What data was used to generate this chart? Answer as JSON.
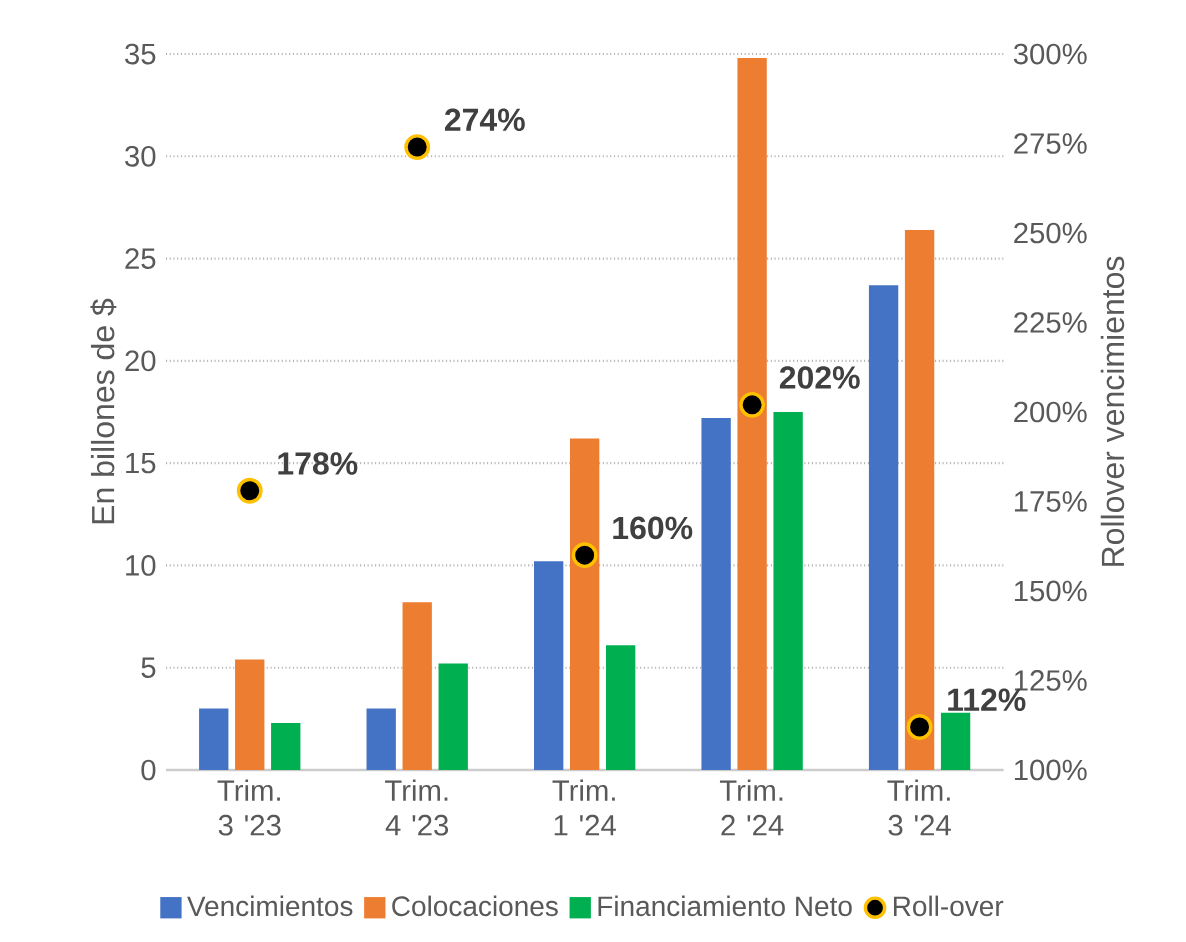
{
  "chart_data": {
    "type": "bar",
    "categories": [
      "Trim. 3 '23",
      "Trim. 4 '23",
      "Trim. 1 '24",
      "Trim. 2 '24",
      "Trim. 3 '24"
    ],
    "ylabel": "En billones de $",
    "y2label": "Rollover  vencimientos",
    "ylim": [
      0,
      35
    ],
    "yticks": [
      0,
      5,
      10,
      15,
      20,
      25,
      30,
      35
    ],
    "y2lim": [
      100,
      300
    ],
    "y2ticks": [
      {
        "value": 100,
        "label": "100%"
      },
      {
        "value": 125,
        "label": "125%"
      },
      {
        "value": 150,
        "label": "150%"
      },
      {
        "value": 175,
        "label": "175%"
      },
      {
        "value": 200,
        "label": "200%"
      },
      {
        "value": 225,
        "label": "225%"
      },
      {
        "value": 250,
        "label": "250%"
      },
      {
        "value": 275,
        "label": "275%"
      },
      {
        "value": 300,
        "label": "300%"
      }
    ],
    "grid": "y",
    "legend": "bottom",
    "series": [
      {
        "name": "Vencimientos",
        "color": "#4472c4",
        "values": [
          3.0,
          3.0,
          10.2,
          17.2,
          23.7
        ]
      },
      {
        "name": "Colocaciones",
        "color": "#ed7d31",
        "values": [
          5.4,
          8.2,
          16.2,
          34.8,
          26.4
        ]
      },
      {
        "name": "Financiamiento Neto",
        "color": "#00b050",
        "values": [
          2.3,
          5.2,
          6.1,
          17.5,
          2.8
        ]
      },
      {
        "name": "Roll-over",
        "type": "scatter",
        "axis": "y2",
        "marker": "circle",
        "color": "#000000",
        "values": [
          178,
          274,
          160,
          202,
          112
        ],
        "value_labels": [
          "178%",
          "274%",
          "160%",
          "202%",
          "112%"
        ]
      }
    ]
  }
}
